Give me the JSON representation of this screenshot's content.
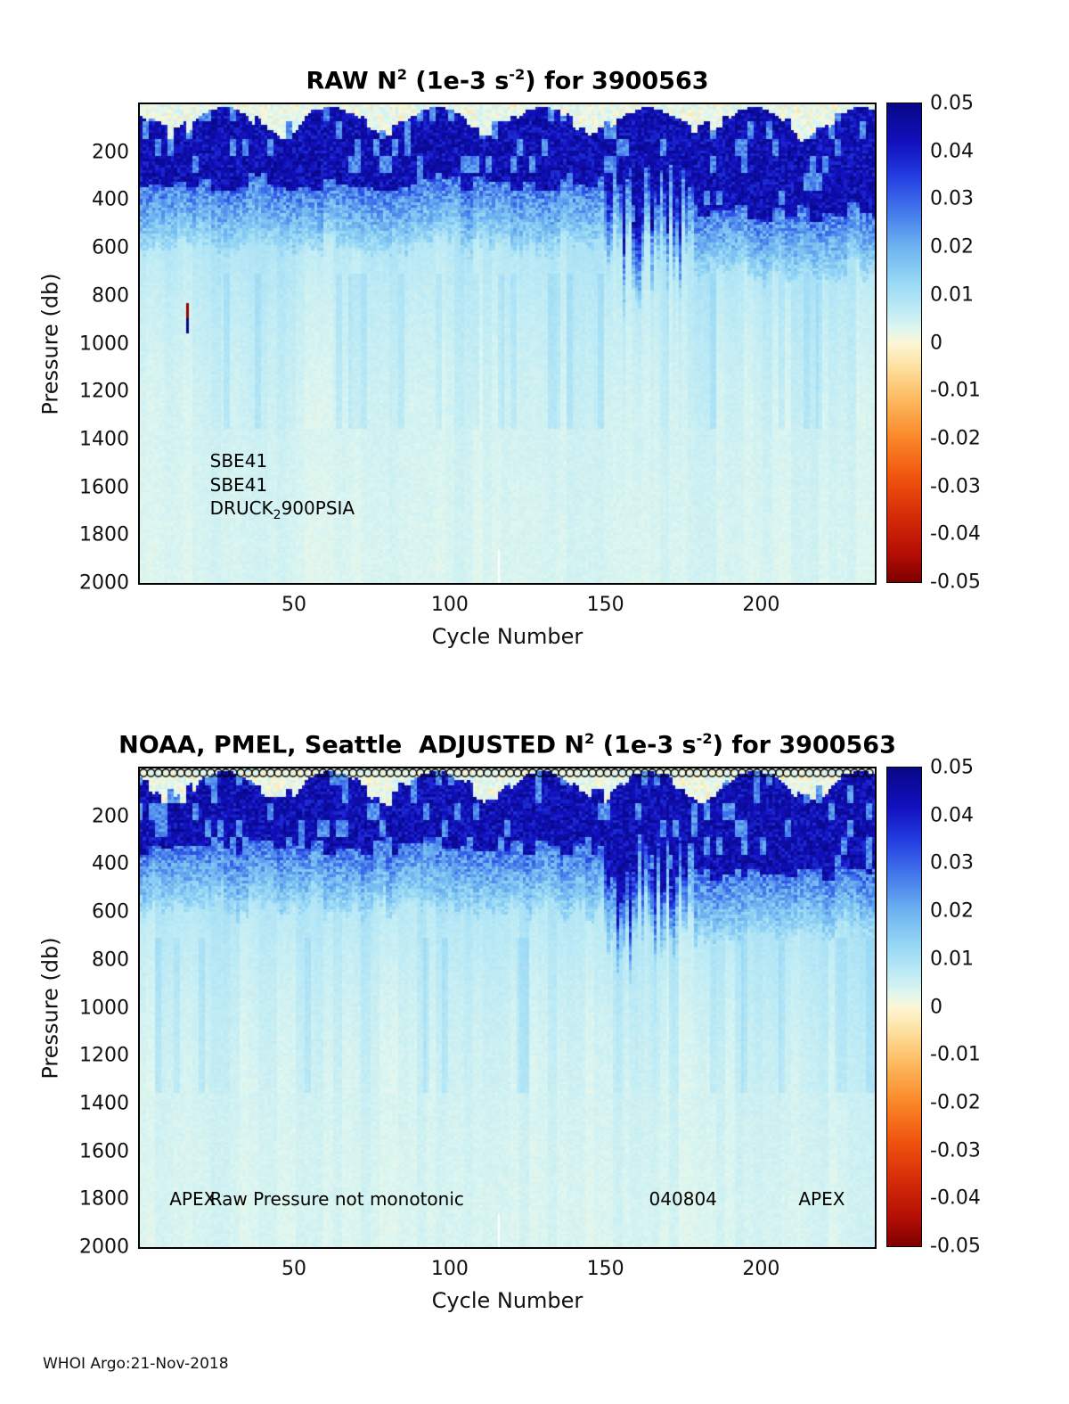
{
  "footer": {
    "credit": "WHOI Argo:21-Nov-2018"
  },
  "colors": {
    "background": "#ffffff",
    "axis": "#000000",
    "colormap_stops": [
      [
        -0.05,
        [
          128,
          0,
          0
        ]
      ],
      [
        -0.044,
        [
          180,
          15,
          5
        ]
      ],
      [
        -0.036,
        [
          215,
          45,
          8
        ]
      ],
      [
        -0.028,
        [
          240,
          85,
          15
        ]
      ],
      [
        -0.02,
        [
          250,
          135,
          40
        ]
      ],
      [
        -0.012,
        [
          253,
          185,
          95
        ]
      ],
      [
        -0.005,
        [
          253,
          225,
          160
        ]
      ],
      [
        0.0,
        [
          253,
          247,
          214
        ]
      ],
      [
        0.003,
        [
          222,
          246,
          240
        ]
      ],
      [
        0.007,
        [
          190,
          235,
          245
        ]
      ],
      [
        0.013,
        [
          150,
          215,
          245
        ]
      ],
      [
        0.02,
        [
          110,
          180,
          240
        ]
      ],
      [
        0.027,
        [
          70,
          125,
          235
        ]
      ],
      [
        0.035,
        [
          35,
          60,
          225
        ]
      ],
      [
        0.042,
        [
          18,
          16,
          190
        ]
      ],
      [
        0.05,
        [
          8,
          8,
          135
        ]
      ]
    ]
  },
  "chart_data": [
    {
      "type": "heatmap",
      "panel": "top",
      "float_id": "3900563",
      "title_plain": "RAW N2 (1e-3 s-2) for 3900563",
      "title_segments": [
        {
          "text": "RAW N"
        },
        {
          "text": "2",
          "style": "sup"
        },
        {
          "text": " (1e-3 s"
        },
        {
          "text": "-2",
          "style": "sup"
        },
        {
          "text": ") for 3900563"
        }
      ],
      "xlabel": "Cycle Number",
      "ylabel": "Pressure (db)",
      "x_range": [
        0.5,
        236.5
      ],
      "y_range": [
        0,
        2000
      ],
      "xticks": [
        50,
        100,
        150,
        200
      ],
      "yticks": [
        200,
        400,
        600,
        800,
        1000,
        1200,
        1400,
        1600,
        1800,
        2000
      ],
      "colorbar": {
        "min": -0.05,
        "max": 0.05,
        "tick_values": [
          0.05,
          0.04,
          0.03,
          0.02,
          0.01,
          0,
          -0.01,
          -0.02,
          -0.03,
          -0.04,
          -0.05
        ],
        "tick_labels": [
          "0.05",
          "0.04",
          "0.03",
          "0.02",
          "0.01",
          "0",
          "-0.01",
          "-0.02",
          "-0.03",
          "-0.04",
          "-0.05"
        ]
      },
      "annotations": [
        {
          "text": "SBE41",
          "cycle": 23,
          "pressure": 1490
        },
        {
          "text": "SBE41",
          "cycle": 23,
          "pressure": 1590
        },
        {
          "segments": [
            {
              "text": "DRUCK"
            },
            {
              "text": "2",
              "style": "sub"
            },
            {
              "text": "900PSIA"
            }
          ],
          "cycle": 23,
          "pressure": 1695
        }
      ],
      "features": [
        {
          "type": "column_dash",
          "cycle": 16,
          "segments": [
            {
              "p0": 830,
              "p1": 893,
              "value": -0.048
            },
            {
              "p0": 893,
              "p1": 956,
              "value": 0.05
            }
          ]
        },
        {
          "type": "missing_column",
          "cycle": 116,
          "p0": 1862,
          "p1": 2000
        }
      ],
      "markers_row": false,
      "field_summary": {
        "description": "Raw buoyancy frequency squared N2 (1e-3 s-2) vs cycle number and pressure. Near-zero / slightly negative cream patches in the seasonal surface mixed layer; strong stratification band 0.035-0.05 from ~80-350 db; values fall to ~0.01 by 600 db and ~0.003-0.007 below 800 db with faint columnar streaks. Streaky deep-reaching high-N2 anomaly near cycles 150-176; dark band deepens to ~450-500 db after cycle ~178. Isolated red/blue spike near cycle 16 at 830-950 db.",
        "pressure_bins_db": [
          25,
          150,
          300,
          450,
          600,
          800,
          1000,
          1400,
          2000
        ],
        "typical_n2_1e3_s2": [
          0.002,
          0.045,
          0.04,
          0.02,
          0.01,
          0.007,
          0.005,
          0.004,
          0.003
        ]
      }
    },
    {
      "type": "heatmap",
      "panel": "bottom",
      "float_id": "3900563",
      "title_plain": "NOAA, PMEL, Seattle ADJUSTED N2 (1e-3 s-2) for 3900563",
      "title_segments": [
        {
          "text": "NOAA, PMEL, Seattle  ADJUSTED N"
        },
        {
          "text": "2",
          "style": "sup"
        },
        {
          "text": " (1e-3 s"
        },
        {
          "text": "-2",
          "style": "sup"
        },
        {
          "text": ") for 3900563"
        }
      ],
      "xlabel": "Cycle Number",
      "ylabel": "Pressure (db)",
      "x_range": [
        0.5,
        236.5
      ],
      "y_range": [
        0,
        2000
      ],
      "xticks": [
        50,
        100,
        150,
        200
      ],
      "yticks": [
        200,
        400,
        600,
        800,
        1000,
        1200,
        1400,
        1600,
        1800,
        2000
      ],
      "colorbar": {
        "min": -0.05,
        "max": 0.05,
        "tick_values": [
          0.05,
          0.04,
          0.03,
          0.02,
          0.01,
          0,
          -0.01,
          -0.02,
          -0.03,
          -0.04,
          -0.05
        ],
        "tick_labels": [
          "0.05",
          "0.04",
          "0.03",
          "0.02",
          "0.01",
          "0",
          "-0.01",
          "-0.02",
          "-0.03",
          "-0.04",
          "-0.05"
        ]
      },
      "annotations": [
        {
          "text": "APEX",
          "cycle": 10,
          "pressure": 1800
        },
        {
          "text": "Raw Pressure not monotonic",
          "cycle": 23,
          "pressure": 1800
        },
        {
          "text": "040804",
          "cycle": 164,
          "pressure": 1800
        },
        {
          "text": "APEX",
          "cycle": 212,
          "pressure": 1800
        }
      ],
      "features": [
        {
          "type": "missing_column",
          "cycle": 116,
          "p0": 1862,
          "p1": 2000
        }
      ],
      "markers_row": true,
      "field_summary": {
        "description": "Adjusted N2 field, same structure as raw panel: cream near-zero surface mixed-layer patches, dark 0.035-0.05 stratification band ~80-350 db, decay to ~0.01 by 600 db and ~0.003-0.007 at depth; deep-reaching anomaly near cycles 150-176; circle markers plotted along the surface for every cycle.",
        "pressure_bins_db": [
          25,
          150,
          300,
          450,
          600,
          800,
          1000,
          1400,
          2000
        ],
        "typical_n2_1e3_s2": [
          0.002,
          0.045,
          0.04,
          0.02,
          0.01,
          0.007,
          0.005,
          0.004,
          0.003
        ]
      }
    }
  ]
}
